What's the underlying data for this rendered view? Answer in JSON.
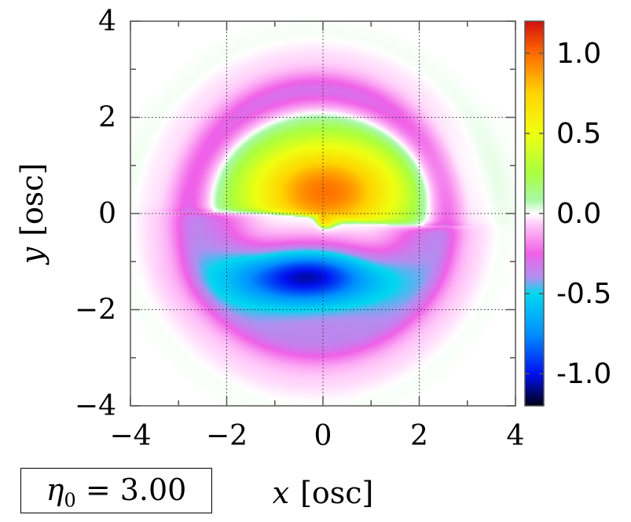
{
  "chart_data": {
    "type": "heatmap",
    "title": "",
    "xlabel": {
      "var": "x",
      "unit": "[osc]"
    },
    "ylabel": {
      "var": "y",
      "unit": "[osc]"
    },
    "xlim": [
      -4,
      4
    ],
    "ylim": [
      -4,
      4
    ],
    "x_ticks": [
      -4,
      -2,
      0,
      2,
      4
    ],
    "y_ticks": [
      -4,
      -2,
      0,
      2,
      4
    ],
    "x_tick_labels": [
      "−4",
      "−2",
      "0",
      "2",
      "4"
    ],
    "y_tick_labels": [
      "−4",
      "−2",
      "0",
      "2",
      "4"
    ],
    "grid": true,
    "colorbar": {
      "range": [
        -1.2,
        1.2
      ],
      "ticks": [
        1.0,
        0.5,
        0.0,
        -0.5,
        -1.0
      ],
      "tick_labels": [
        "1.0",
        "0.5",
        "0.0",
        "-0.5",
        "-1.0"
      ],
      "colormap": [
        {
          "v": 1.2,
          "color": "#d01010"
        },
        {
          "v": 1.0,
          "color": "#ff6a00"
        },
        {
          "v": 0.75,
          "color": "#ffd400"
        },
        {
          "v": 0.5,
          "color": "#f0ff10"
        },
        {
          "v": 0.25,
          "color": "#a8ff40"
        },
        {
          "v": 0.08,
          "color": "#a8f8a8"
        },
        {
          "v": 0.0,
          "color": "#ffffff"
        },
        {
          "v": -0.08,
          "color": "#ffc0f8"
        },
        {
          "v": -0.25,
          "color": "#f060e8"
        },
        {
          "v": -0.4,
          "color": "#b090f0"
        },
        {
          "v": -0.5,
          "color": "#00d8f0"
        },
        {
          "v": -0.75,
          "color": "#0090ff"
        },
        {
          "v": -1.0,
          "color": "#0010f0"
        },
        {
          "v": -1.2,
          "color": "#000018"
        }
      ]
    },
    "features": [
      {
        "name": "positive-lobe",
        "center": [
          0.0,
          0.4
        ],
        "peak_value": 1.0
      },
      {
        "name": "negative-lobe",
        "center": [
          -0.3,
          -1.3
        ],
        "peak_value": -1.0
      },
      {
        "name": "negative-ring",
        "radius": 2.6,
        "value": -0.3
      }
    ],
    "annotation": {
      "symbol": "η",
      "subscript": "0",
      "relation": "= 3.00"
    }
  }
}
